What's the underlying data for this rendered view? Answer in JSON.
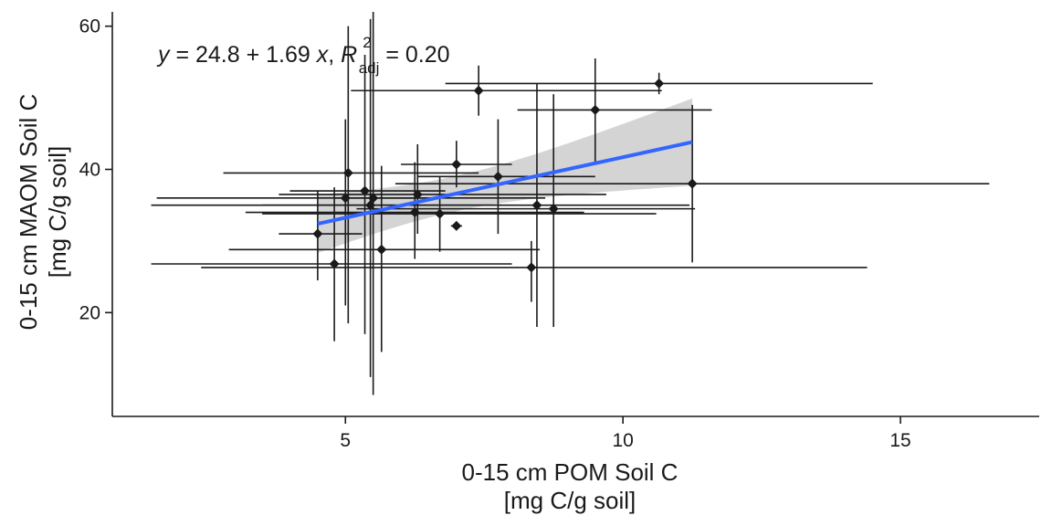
{
  "chart_data": {
    "type": "scatter",
    "xlabel": [
      "0-15 cm POM Soil C",
      "[mg C/g soil]"
    ],
    "ylabel": [
      "0-15 cm MAOM Soil C",
      "[mg C/g soil]"
    ],
    "xlim": [
      0.8,
      17.5
    ],
    "ylim": [
      5.5,
      62
    ],
    "x_ticks": [
      5,
      10,
      15
    ],
    "y_ticks": [
      20,
      40,
      60
    ],
    "grid": false,
    "annotation": {
      "y": "y",
      "eq": " = 24.8 + 1.69 ",
      "x": "x",
      "comma": ", ",
      "R": "R",
      "sup": "2",
      "sub": "adj",
      "val": " = 0.20"
    },
    "regression": {
      "intercept": 24.8,
      "slope": 1.69,
      "x_range": [
        4.5,
        11.25
      ],
      "r2_adj": 0.2
    },
    "colors": {
      "points": "#1a1a1a",
      "fit": "#3366ff",
      "band": "#cccccc"
    },
    "points": [
      {
        "x": 4.5,
        "y": 31.0,
        "xerr": [
          3.8,
          5.3
        ],
        "yerr": [
          24.5,
          37.0
        ]
      },
      {
        "x": 4.8,
        "y": 26.8,
        "xerr": [
          1.5,
          8.0
        ],
        "yerr": [
          16.0,
          37.5
        ]
      },
      {
        "x": 5.05,
        "y": 39.5,
        "xerr": [
          2.8,
          7.4
        ],
        "yerr": [
          18.5,
          60.0
        ]
      },
      {
        "x": 5.0,
        "y": 36.0,
        "xerr": [
          1.6,
          8.6
        ],
        "yerr": [
          21.0,
          47.0
        ]
      },
      {
        "x": 5.35,
        "y": 37.0,
        "xerr": [
          4.0,
          6.8
        ],
        "yerr": [
          17.0,
          56.0
        ]
      },
      {
        "x": 5.45,
        "y": 35.0,
        "xerr": [
          3.5,
          7.8
        ],
        "yerr": [
          11.0,
          61.0
        ]
      },
      {
        "x": 5.5,
        "y": 36.0,
        "xerr": [
          4.8,
          6.5
        ],
        "yerr": [
          8.5,
          62.0
        ]
      },
      {
        "x": 5.65,
        "y": 28.8,
        "xerr": [
          2.9,
          8.5
        ],
        "yerr": [
          14.5,
          40.5
        ]
      },
      {
        "x": 6.25,
        "y": 34.0,
        "xerr": [
          3.2,
          9.3
        ],
        "yerr": [
          27.5,
          41.0
        ]
      },
      {
        "x": 6.3,
        "y": 36.5,
        "xerr": [
          3.8,
          9.7
        ],
        "yerr": [
          31.0,
          43.5
        ]
      },
      {
        "x": 6.7,
        "y": 33.8,
        "xerr": [
          3.5,
          10.6
        ],
        "yerr": [
          28.5,
          39.0
        ]
      },
      {
        "x": 7.0,
        "y": 40.7,
        "xerr": [
          6.0,
          8.0
        ],
        "yerr": [
          37.5,
          44.0
        ]
      },
      {
        "x": 7.0,
        "y": 32.1,
        "xerr": [
          6.9,
          7.1
        ],
        "yerr": [
          31.7,
          32.6
        ]
      },
      {
        "x": 7.4,
        "y": 51.0,
        "xerr": [
          5.1,
          10.7
        ],
        "yerr": [
          47.5,
          54.5
        ]
      },
      {
        "x": 7.75,
        "y": 39.0,
        "xerr": [
          6.3,
          9.5
        ],
        "yerr": [
          31.0,
          47.0
        ]
      },
      {
        "x": 8.35,
        "y": 26.3,
        "xerr": [
          2.4,
          14.4
        ],
        "yerr": [
          21.5,
          30.0
        ]
      },
      {
        "x": 8.45,
        "y": 35.0,
        "xerr": [
          1.5,
          11.2
        ],
        "yerr": [
          18.0,
          52.0
        ]
      },
      {
        "x": 8.75,
        "y": 34.5,
        "xerr": [
          5.2,
          11.3
        ],
        "yerr": [
          18.0,
          50.5
        ]
      },
      {
        "x": 9.5,
        "y": 48.3,
        "xerr": [
          8.1,
          11.6
        ],
        "yerr": [
          41.0,
          55.5
        ]
      },
      {
        "x": 10.65,
        "y": 52.0,
        "xerr": [
          6.8,
          14.5
        ],
        "yerr": [
          50.5,
          53.5
        ]
      },
      {
        "x": 11.25,
        "y": 38.0,
        "xerr": [
          5.9,
          16.6
        ],
        "yerr": [
          27.0,
          49.0
        ]
      }
    ]
  }
}
